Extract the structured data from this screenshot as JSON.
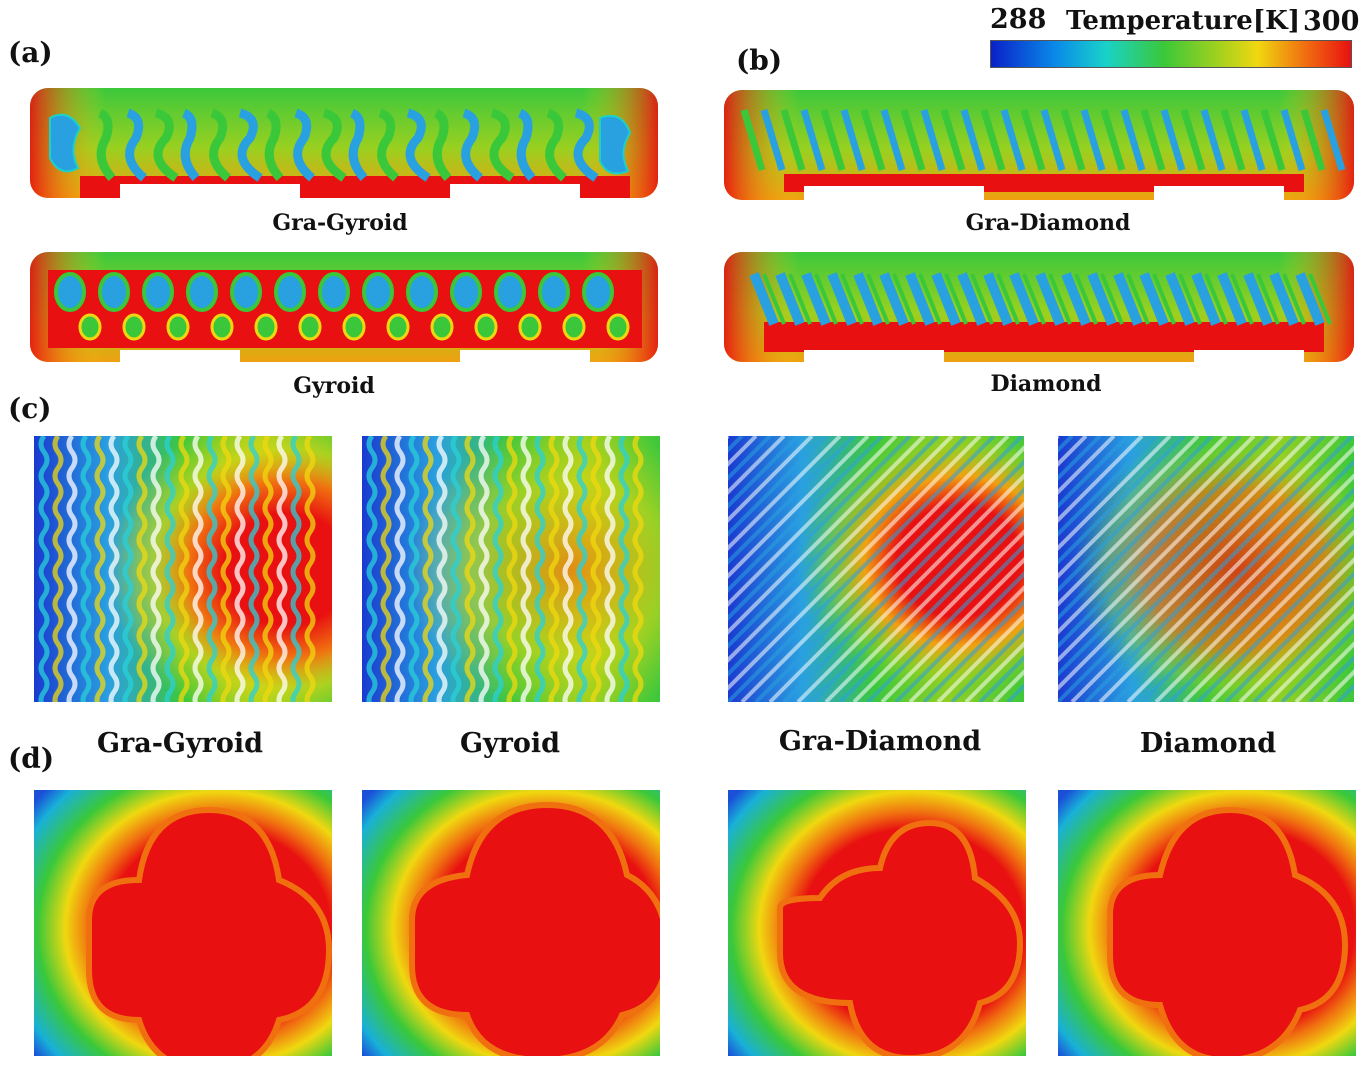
{
  "legend": {
    "min": "288",
    "max": "300",
    "title": "Temperature[K]",
    "colormap": [
      "#0a20c8",
      "#0a8ae8",
      "#19d2c8",
      "#3ac83a",
      "#9ad020",
      "#f0d810",
      "#f07010",
      "#e81010"
    ]
  },
  "panels": {
    "a": {
      "label": "(a)",
      "top_caption": "Gra-Gyroid",
      "bottom_caption": "Gyroid"
    },
    "b": {
      "label": "(b)",
      "top_caption": "Gra-Diamond",
      "bottom_caption": "Diamond"
    },
    "c": {
      "label": "(c)",
      "captions": [
        "Gra-Gyroid",
        "Gyroid",
        "Gra-Diamond",
        "Diamond"
      ]
    },
    "d": {
      "label": "(d)"
    }
  },
  "colors": {
    "hot": "#e80e0e",
    "warm": "#f0d410",
    "mid": "#3cc83c",
    "cool": "#2aa0e0",
    "cold": "#1a3ad0"
  }
}
